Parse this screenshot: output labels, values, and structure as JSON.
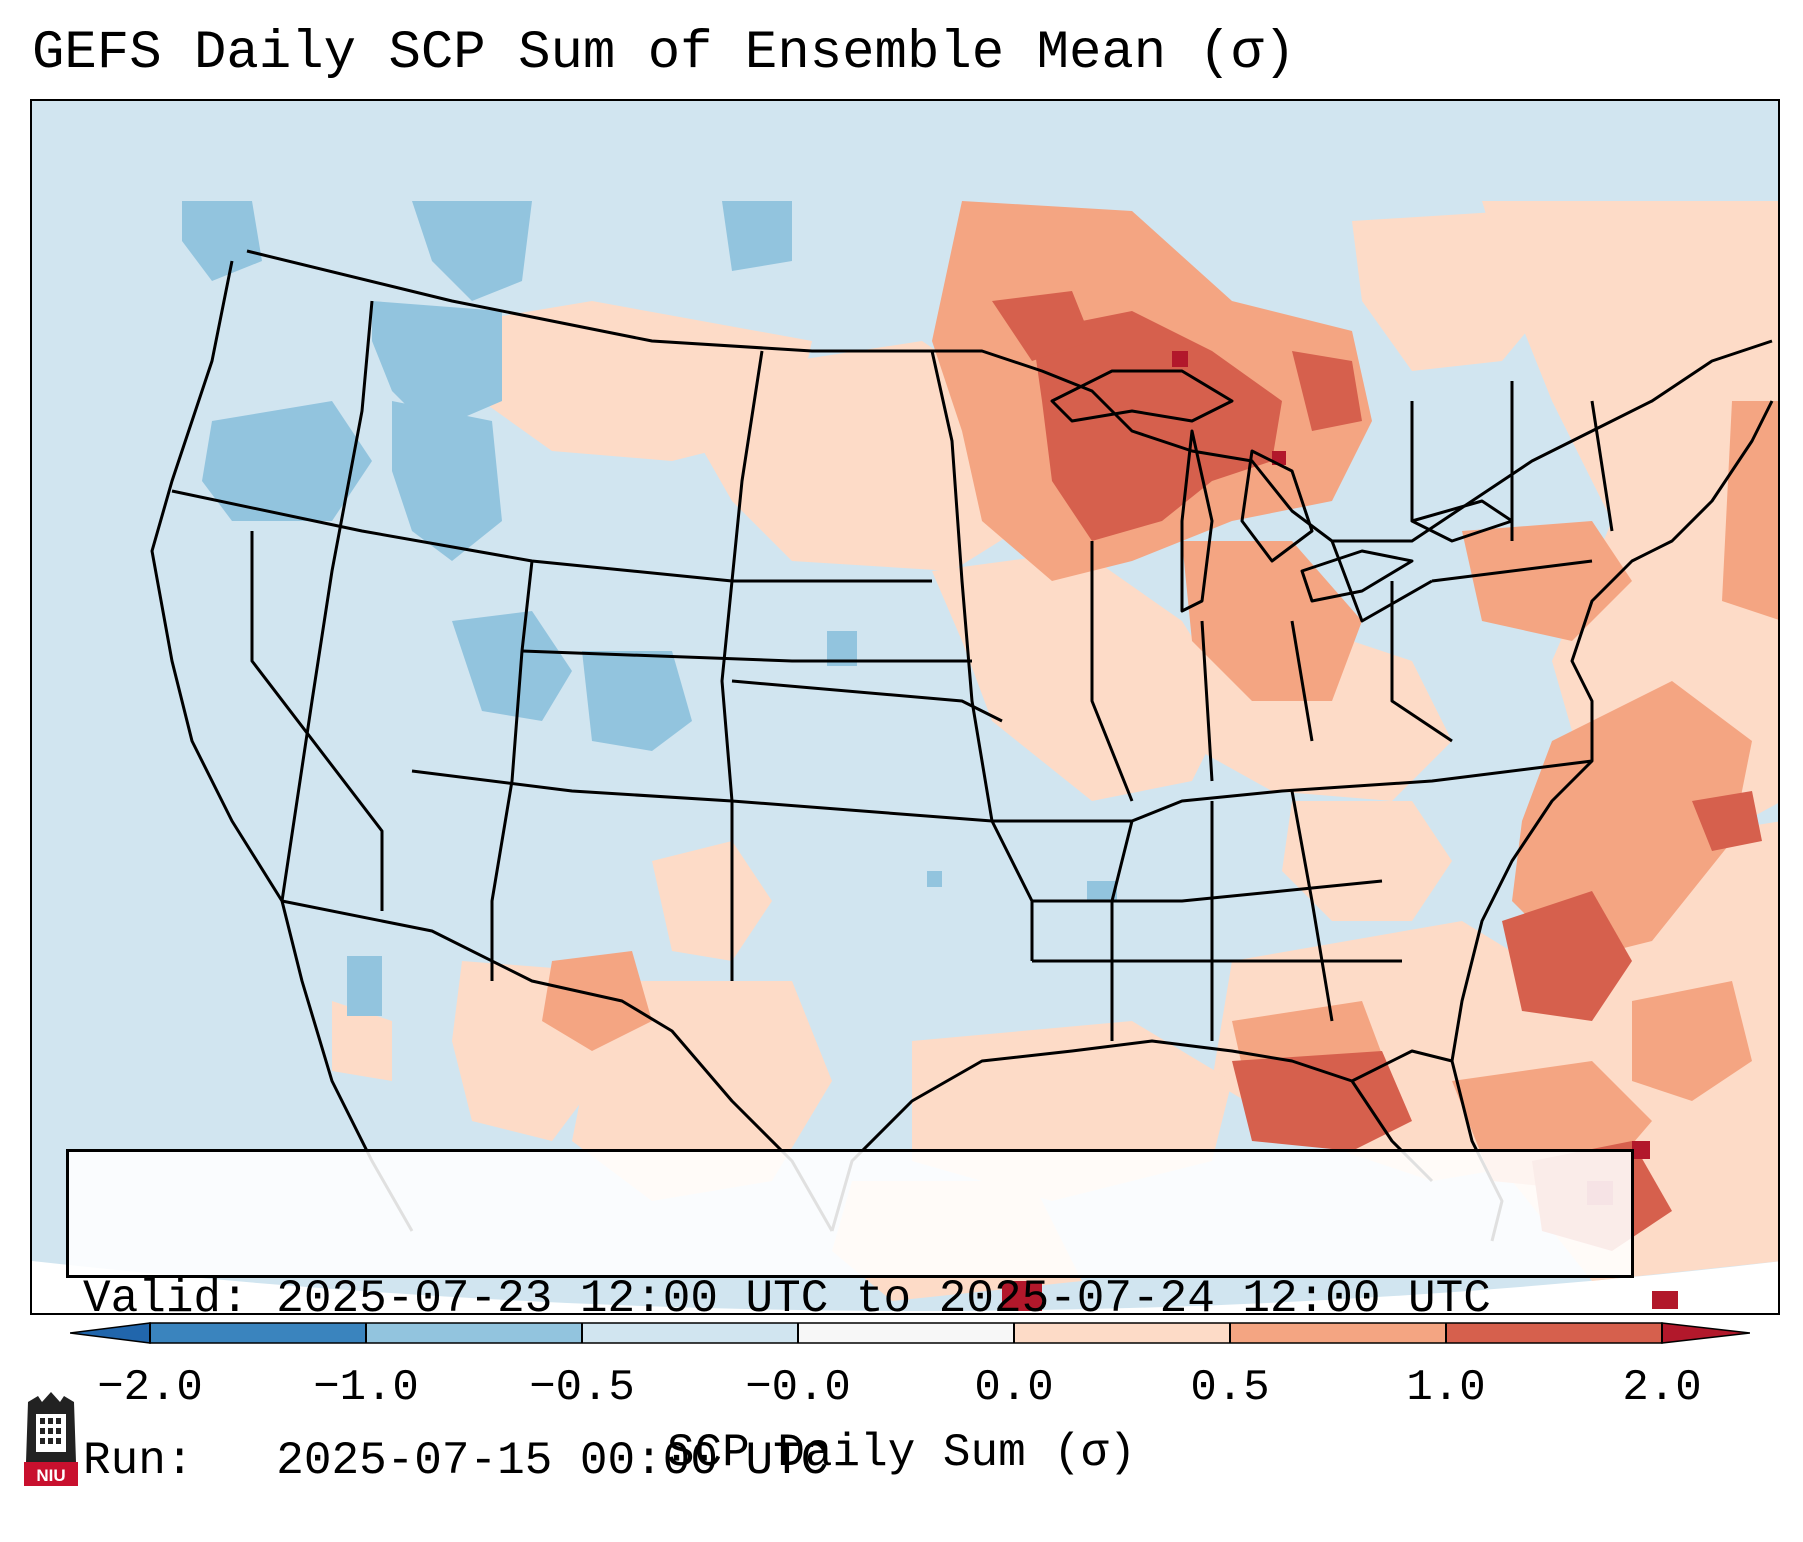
{
  "title": "GEFS Daily SCP Sum of Ensemble Mean (σ)",
  "info_box": {
    "valid_label": "Valid:",
    "valid_value": "2025-07-23 12:00 UTC to 2025-07-24 12:00 UTC",
    "run_label": "Run:",
    "run_value": "2025-07-15 00:00 UTC"
  },
  "colorbar": {
    "label": "SCP Daily Sum (σ)",
    "ticks": [
      "−2.0",
      "−1.0",
      "−0.5",
      "−0.0",
      "0.0",
      "0.5",
      "1.0",
      "2.0"
    ],
    "colors": [
      "#3a84be",
      "#92c4de",
      "#d1e5f0",
      "#f7f7f7",
      "#fddbc7",
      "#f4a582",
      "#d6604d",
      "#b2182b"
    ]
  },
  "map": {
    "region": "Continental United States",
    "anomaly_regions": [
      {
        "area": "Northwest / Idaho",
        "sigma_range": "-1.0 to -0.5"
      },
      {
        "area": "Colorado Rockies",
        "sigma_range": "-1.0 to -0.5"
      },
      {
        "area": "Upper Midwest / Great Lakes",
        "sigma_range": "1.0 to 2.0"
      },
      {
        "area": "Southeast Atlantic coast offshore",
        "sigma_range": "0.5 to 1.0"
      },
      {
        "area": "Northern Gulf of Mexico",
        "sigma_range": "1.0 to 2.0"
      },
      {
        "area": "Bahamas / Cuba",
        "sigma_range": "1.0 to 2.0"
      }
    ]
  },
  "logo": {
    "text": "NIU"
  }
}
